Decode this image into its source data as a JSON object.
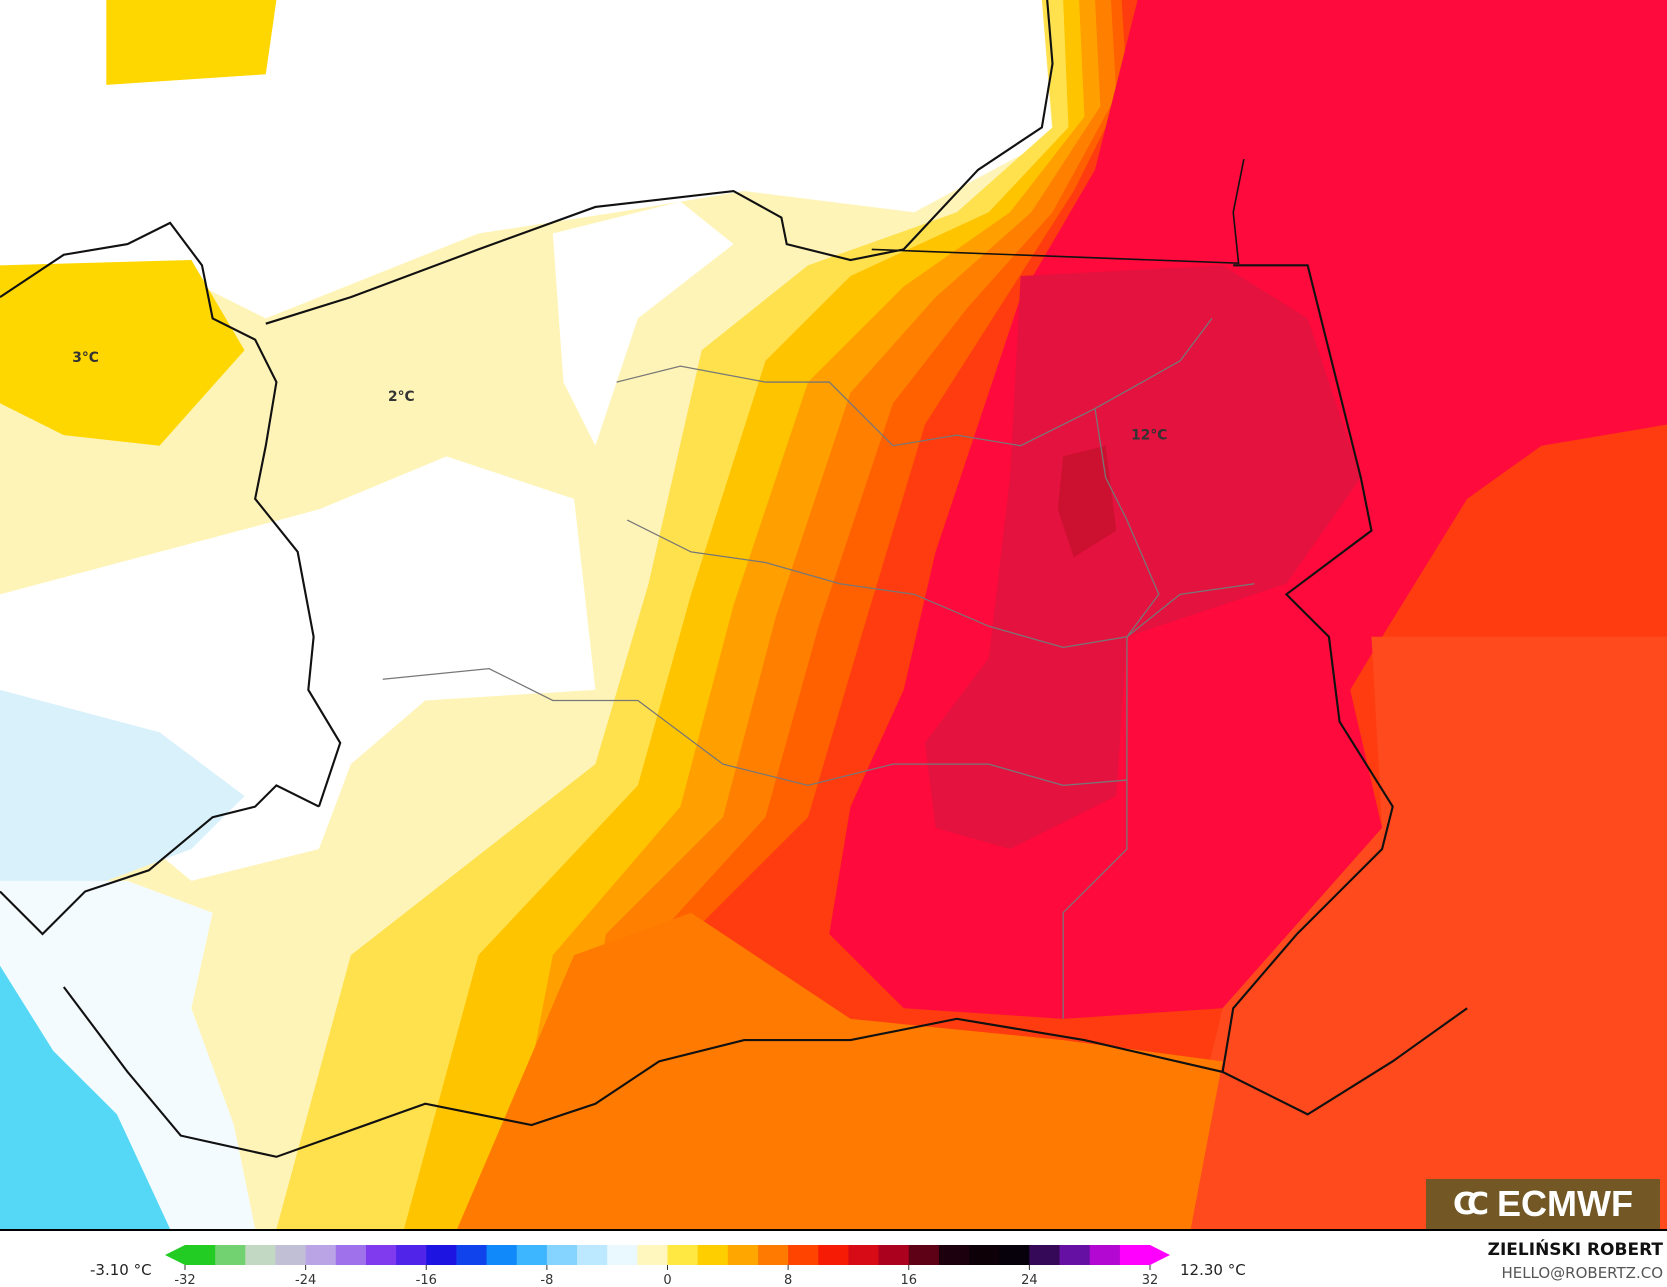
{
  "map": {
    "labels": [
      {
        "text": "3°C"
      },
      {
        "text": "2°C"
      },
      {
        "text": "12°C"
      }
    ],
    "colors": {
      "white": "#ffffff",
      "pale_yellow": "#fff4b8",
      "yellow": "#ffd700",
      "orange": "#ff8c00",
      "red": "#ff0a3c",
      "crimson": "#e4123f",
      "light_blue": "#d8f1fb",
      "blue": "#55d8f5"
    }
  },
  "logo": {
    "text": "ECMWF"
  },
  "colorbar": {
    "min_label": "-3.10 °C",
    "max_label": "12.30 °C",
    "ticks": [
      "-32",
      "-24",
      "-16",
      "-8",
      "0",
      "8",
      "16",
      "24",
      "32"
    ],
    "range": [
      -32,
      32
    ],
    "stops": [
      "#22cc22",
      "#c8d8c8",
      "#b9a0e8",
      "#7a30f0",
      "#1010e0",
      "#10a0ff",
      "#a0e0ff",
      "#ffffff",
      "#ffe000",
      "#ff9000",
      "#ff2000",
      "#c00020",
      "#200010",
      "#000000",
      "#6010a0",
      "#ff00ff"
    ]
  },
  "credits": {
    "author": "ZIELIŃSKI ROBERT",
    "email": "HELLO@ROBERTZ.CO"
  }
}
